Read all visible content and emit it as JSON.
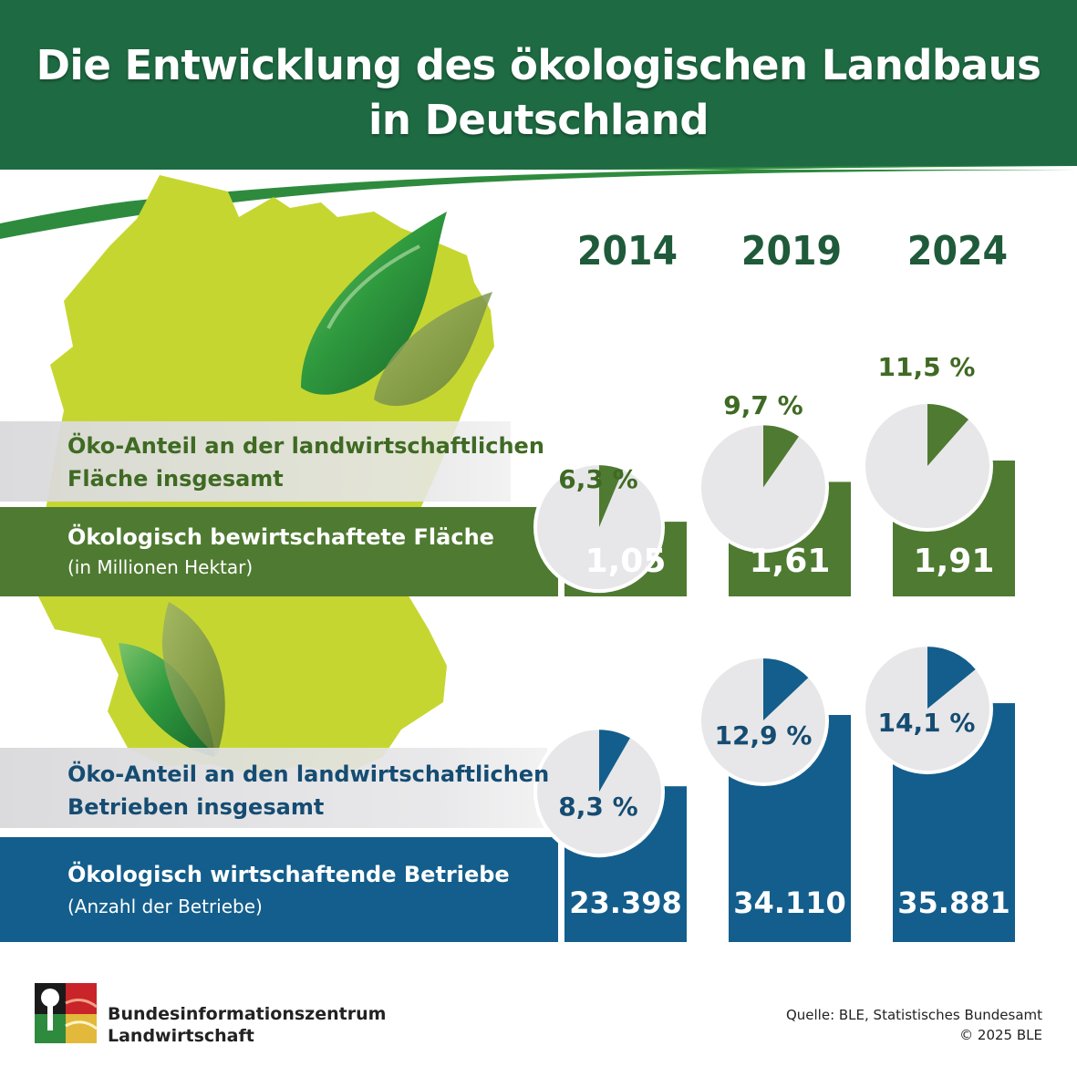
{
  "title": {
    "line1": "Die Entwicklung des ökologischen Landbaus",
    "line2": "in Deutschland"
  },
  "years": [
    "2014",
    "2019",
    "2024"
  ],
  "colors": {
    "header": "#1e6b43",
    "swoosh": "#2e8b3e",
    "map": "#c6d631",
    "area_green": "#4f7a31",
    "farm_blue": "#135e8c",
    "pie_bg": "#e7e7e9",
    "band": "#dedee0",
    "area_text": "#3f6a23",
    "farm_text": "#154c72",
    "year_text": "#1f5a3a"
  },
  "chart_data": [
    {
      "type": "bar",
      "categories": [
        "2014",
        "2019",
        "2024"
      ],
      "series": [
        {
          "name": "Ökologisch bewirtschaftete Fläche",
          "values": [
            1.05,
            1.61,
            1.91
          ]
        }
      ],
      "value_labels": [
        "1,05",
        "1,61",
        "1,91"
      ],
      "label": "Ökologisch bewirtschaftete Fläche",
      "unit_label": "(in Millionen Hektar)",
      "share": {
        "label_line1": "Öko-Anteil an der landwirtschaftlichen",
        "label_line2": "Fläche insgesamt",
        "values": [
          6.3,
          9.7,
          11.5
        ],
        "value_labels": [
          "6,3 %",
          "9,7 %",
          "11,5 %"
        ]
      }
    },
    {
      "type": "bar",
      "categories": [
        "2014",
        "2019",
        "2024"
      ],
      "series": [
        {
          "name": "Ökologisch wirtschaftende Betriebe",
          "values": [
            23398,
            34110,
            35881
          ]
        }
      ],
      "value_labels": [
        "23.398",
        "34.110",
        "35.881"
      ],
      "label": "Ökologisch wirtschaftende Betriebe",
      "unit_label": "(Anzahl der Betriebe)",
      "share": {
        "label_line1": "Öko-Anteil an den landwirtschaftlichen",
        "label_line2": "Betrieben insgesamt",
        "values": [
          8.3,
          12.9,
          14.1
        ],
        "value_labels": [
          "8,3 %",
          "12,9 %",
          "14,1 %"
        ]
      }
    }
  ],
  "footer": {
    "org_line1": "Bundesinformationszentrum",
    "org_line2": "Landwirtschaft",
    "source": "Quelle:  BLE, Statistisches Bundesamt",
    "copyright": "© 2025 BLE"
  }
}
